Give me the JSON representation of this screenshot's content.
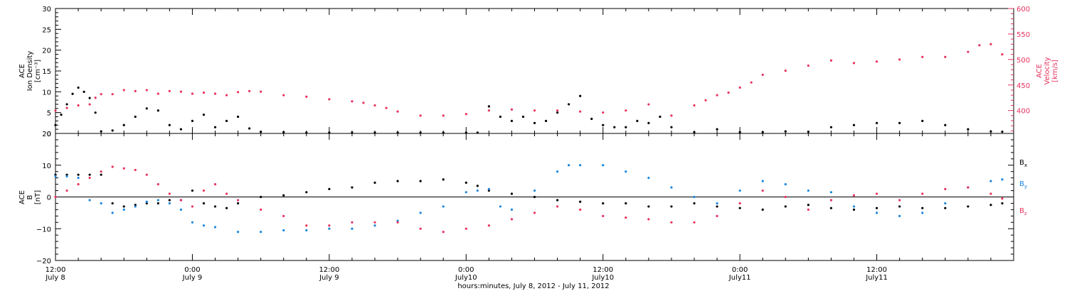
{
  "colors": {
    "black": "#000000",
    "red": "#e8325e",
    "blue": "#1a86e0"
  },
  "chart_data": [
    {
      "type": "scatter",
      "panel": "top",
      "ylabel": [
        "ACE",
        "Ion Density",
        "[cm⁻³]"
      ],
      "ylim": [
        0,
        30
      ],
      "yticks": [
        "0",
        "5",
        "10",
        "15",
        "20",
        "25",
        "30"
      ],
      "ylabel_right": [
        "ACE",
        "Velocity",
        "[km/s]"
      ],
      "ylim_right": [
        355,
        600
      ],
      "yticks_right": [
        "400",
        "450",
        "500",
        "550",
        "600"
      ],
      "x_unit": "hours since July 8, 2012 12:00",
      "xlim": [
        0,
        84
      ],
      "series": [
        {
          "name": "",
          "axis": "left",
          "color": "#000000",
          "x": [
            0,
            0.5,
            1,
            1.5,
            2,
            2.5,
            3,
            3.5,
            4,
            5,
            6,
            7,
            8,
            9,
            10,
            11,
            12,
            13,
            14,
            15,
            16,
            17,
            18,
            20,
            22,
            24,
            26,
            28,
            30,
            32,
            34,
            36,
            37,
            38,
            39,
            40,
            41,
            42,
            43,
            44,
            45,
            46,
            47,
            48,
            49,
            50,
            51,
            52,
            53,
            54,
            56,
            58,
            60,
            62,
            64,
            66,
            68,
            70,
            72,
            74,
            76,
            78,
            80,
            82,
            83
          ],
          "values": [
            2.0,
            4.5,
            7.0,
            9.5,
            11.0,
            10.0,
            8.5,
            5.0,
            0.5,
            0.7,
            2.0,
            4.0,
            6.0,
            5.5,
            2.0,
            1.0,
            3.0,
            4.5,
            1.5,
            3.0,
            4.0,
            1.2,
            0.4,
            0.3,
            0.2,
            0.2,
            0.2,
            0.2,
            0.2,
            0.2,
            0.2,
            0.2,
            0.2,
            6.5,
            4.0,
            3.0,
            4.0,
            2.5,
            3.0,
            5.0,
            7.0,
            9.0,
            3.5,
            2.0,
            1.5,
            1.5,
            3.0,
            2.5,
            4.0,
            1.5,
            0.3,
            1.0,
            0.3,
            0.3,
            0.5,
            0.4,
            1.5,
            2.0,
            2.5,
            2.5,
            3.0,
            2.0,
            1.0,
            0.5,
            0.4
          ]
        },
        {
          "name": "",
          "axis": "right",
          "color": "#e8325e",
          "x": [
            0,
            1,
            2,
            3,
            3.5,
            4,
            5,
            6,
            7,
            8,
            9,
            10,
            11,
            12,
            13,
            14,
            15,
            16,
            17,
            18,
            20,
            22,
            24,
            26,
            27,
            28,
            29,
            30,
            32,
            34,
            36,
            38,
            40,
            42,
            44,
            46,
            48,
            50,
            52,
            54,
            56,
            57,
            58,
            59,
            60,
            61,
            62,
            64,
            66,
            68,
            70,
            72,
            74,
            76,
            78,
            80,
            81,
            82,
            83
          ],
          "values": [
            400,
            405,
            410,
            412,
            425,
            432,
            432,
            440,
            438,
            440,
            433,
            438,
            437,
            433,
            435,
            433,
            430,
            436,
            438,
            437,
            430,
            427,
            422,
            418,
            415,
            410,
            405,
            398,
            390,
            390,
            393,
            400,
            402,
            400,
            400,
            398,
            396,
            400,
            412,
            390,
            410,
            420,
            430,
            435,
            445,
            455,
            470,
            478,
            488,
            498,
            493,
            496,
            500,
            505,
            505,
            515,
            528,
            530,
            510
          ]
        }
      ]
    },
    {
      "type": "scatter",
      "panel": "bottom",
      "ylabel": [
        "ACE",
        "B",
        "[nT]"
      ],
      "ylim": [
        -20,
        20
      ],
      "yticks": [
        "−20",
        "−10",
        "0",
        "10",
        "20"
      ],
      "x_unit": "hours since July 8, 2012 12:00",
      "xlim": [
        0,
        84
      ],
      "series": [
        {
          "name": "Bx",
          "color": "#000000",
          "x": [
            0,
            1,
            2,
            3,
            4,
            5,
            6,
            7,
            8,
            9,
            10,
            11,
            12,
            13,
            14,
            15,
            16,
            18,
            20,
            22,
            24,
            26,
            28,
            30,
            32,
            34,
            36,
            37,
            38,
            40,
            42,
            44,
            46,
            48,
            50,
            52,
            54,
            56,
            58,
            60,
            62,
            64,
            66,
            68,
            70,
            72,
            74,
            76,
            78,
            80,
            82,
            83
          ],
          "values": [
            7.0,
            7.0,
            7.0,
            7.0,
            7.0,
            -2.0,
            -3.0,
            -2.5,
            -2.0,
            -2.0,
            -1.0,
            -1.0,
            2.0,
            -2.0,
            -3.0,
            -3.5,
            -2.0,
            0.0,
            0.5,
            1.5,
            2.5,
            3.0,
            4.5,
            5.0,
            5.0,
            5.5,
            4.5,
            3.5,
            2.0,
            1.0,
            0.0,
            -1.0,
            -1.5,
            -2.0,
            -2.0,
            -3.0,
            -3.0,
            -2.0,
            -3.0,
            -3.5,
            -4.0,
            -3.0,
            -2.5,
            -3.5,
            -4.0,
            -3.5,
            -3.0,
            -3.5,
            -3.5,
            -3.0,
            -2.5,
            -2.0
          ]
        },
        {
          "name": "By",
          "color": "#1a86e0",
          "x": [
            0,
            1,
            2,
            3,
            4,
            5,
            6,
            7,
            8,
            9,
            10,
            11,
            12,
            13,
            14,
            16,
            18,
            20,
            22,
            24,
            26,
            28,
            30,
            32,
            34,
            36,
            37,
            38,
            39,
            40,
            42,
            44,
            45,
            46,
            48,
            50,
            52,
            54,
            56,
            58,
            60,
            62,
            64,
            66,
            68,
            70,
            72,
            74,
            76,
            78,
            80,
            82,
            83
          ],
          "values": [
            6.5,
            6.5,
            6.0,
            -1.0,
            -2.0,
            -5.0,
            -4.0,
            -3.0,
            -1.5,
            -1.0,
            -2.0,
            -4.0,
            -8.0,
            -9.0,
            -9.5,
            -11.0,
            -11.0,
            -10.5,
            -10.5,
            -10.0,
            -10.0,
            -9.0,
            -7.5,
            -5.0,
            -3.0,
            1.5,
            2.0,
            2.5,
            -3.0,
            -4.0,
            2.0,
            8.0,
            10.0,
            10.0,
            10.0,
            8.0,
            6.0,
            3.0,
            0.0,
            -2.0,
            2.0,
            5.0,
            4.0,
            2.0,
            1.5,
            -3.0,
            -5.0,
            -6.0,
            -5.0,
            -2.0,
            3.0,
            5.0,
            5.5
          ]
        },
        {
          "name": "Bz",
          "color": "#e8325e",
          "x": [
            0,
            1,
            2,
            3,
            4,
            5,
            6,
            7,
            8,
            9,
            10,
            11,
            12,
            13,
            14,
            15,
            16,
            18,
            20,
            22,
            24,
            26,
            28,
            30,
            32,
            34,
            36,
            38,
            40,
            42,
            44,
            46,
            48,
            50,
            52,
            54,
            56,
            58,
            60,
            62,
            64,
            66,
            68,
            70,
            72,
            74,
            76,
            78,
            80,
            82,
            83
          ],
          "values": [
            0.0,
            2.0,
            4.0,
            6.0,
            8.0,
            9.5,
            9.0,
            8.5,
            7.0,
            4.0,
            1.0,
            -1.0,
            -3.0,
            2.0,
            4.0,
            1.0,
            -1.0,
            -4.0,
            -6.0,
            -9.0,
            -9.0,
            -8.0,
            -8.0,
            -8.0,
            -10.0,
            -11.0,
            -10.0,
            -9.0,
            -7.0,
            -5.0,
            -3.0,
            -4.0,
            -6.0,
            -6.5,
            -7.0,
            -8.0,
            -8.0,
            -6.0,
            -2.0,
            2.0,
            0.0,
            -4.0,
            -1.0,
            0.5,
            1.0,
            -1.0,
            1.0,
            2.5,
            3.0,
            1.0,
            -0.5
          ]
        }
      ]
    }
  ],
  "x_axis": {
    "ticks": [
      {
        "hours": 0,
        "time": "12:00",
        "date": "July 8"
      },
      {
        "hours": 12,
        "time": "0:00",
        "date": "July 9"
      },
      {
        "hours": 24,
        "time": "12:00",
        "date": "July 9"
      },
      {
        "hours": 36,
        "time": "0:00",
        "date": "July10"
      },
      {
        "hours": 48,
        "time": "12:00",
        "date": "July10"
      },
      {
        "hours": 60,
        "time": "0:00",
        "date": "July11"
      },
      {
        "hours": 72,
        "time": "12:00",
        "date": "July11"
      }
    ],
    "label": "hours:minutes, July  8, 2012 - July 11, 2012"
  },
  "legend": {
    "bx": "B",
    "bx_sub": "x",
    "by": "B",
    "by_sub": "y",
    "bz": "B",
    "bz_sub": "z"
  }
}
